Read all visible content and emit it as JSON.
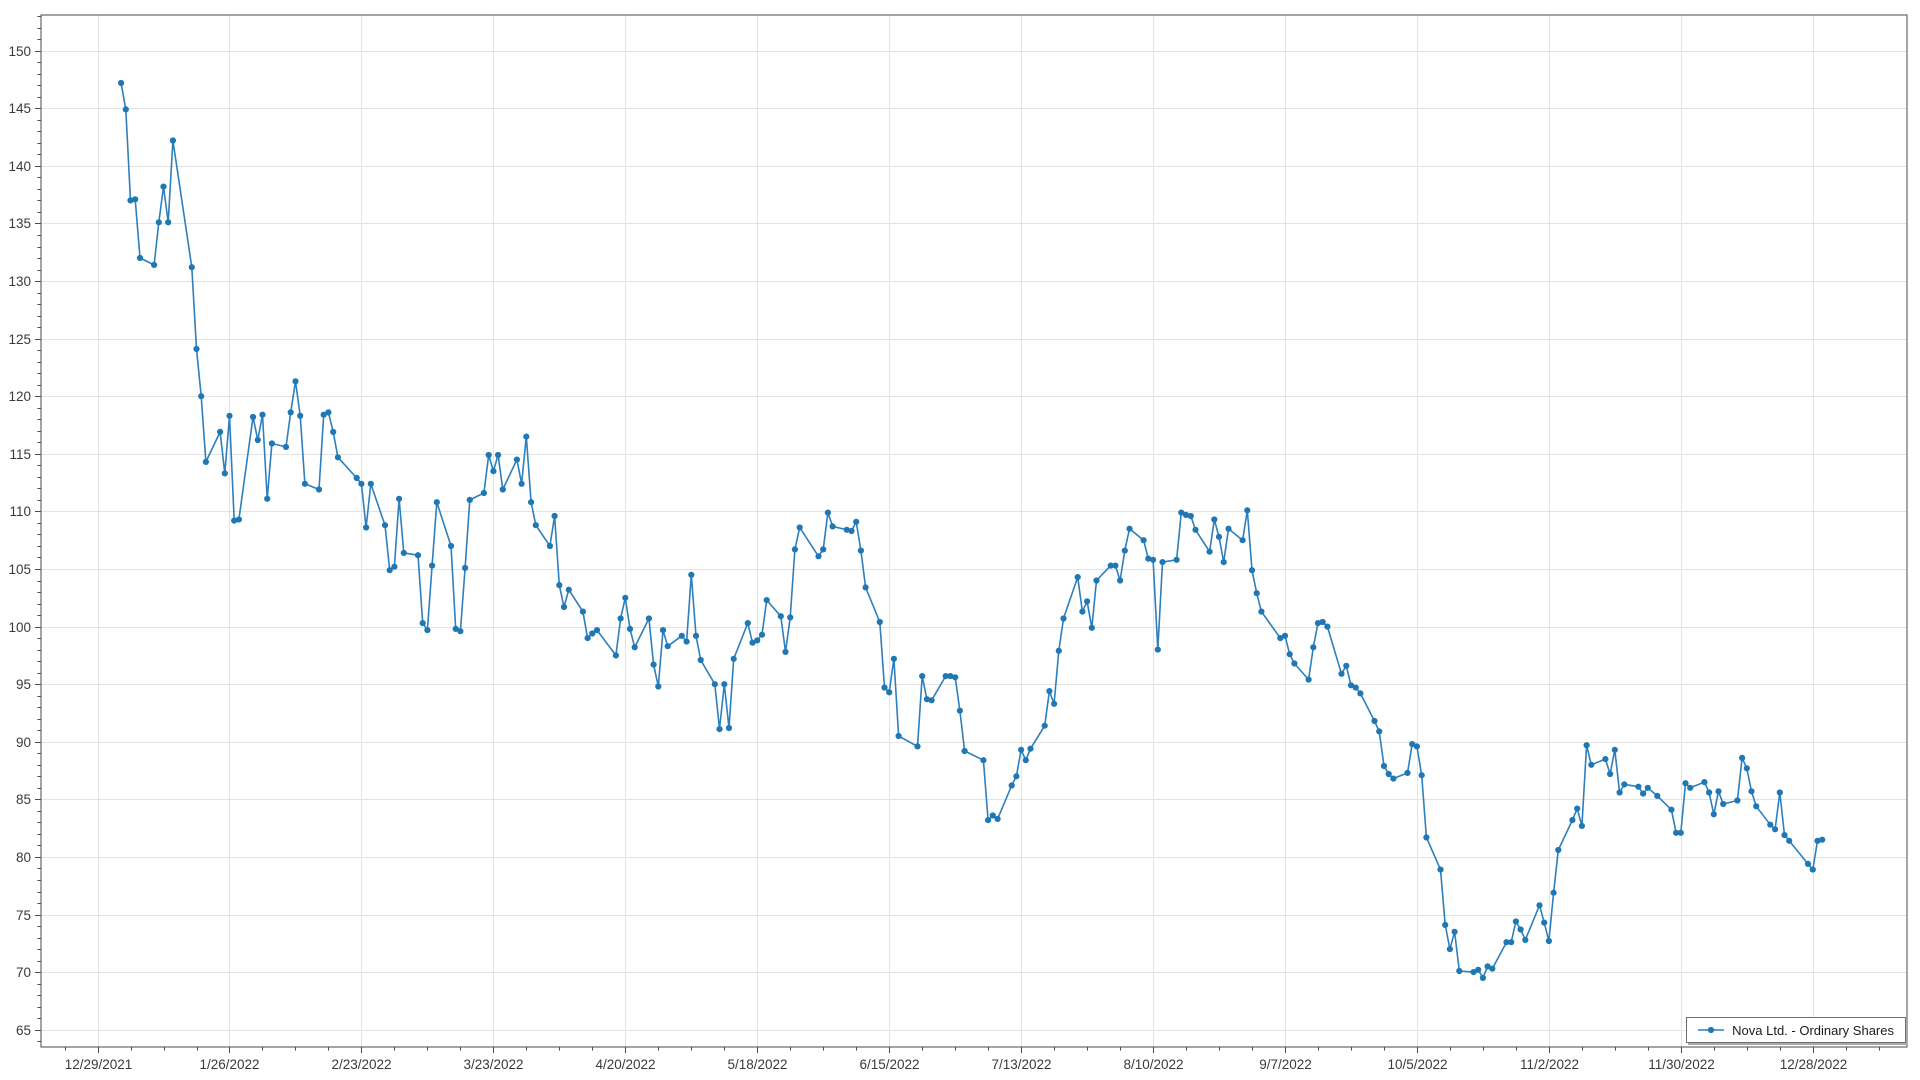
{
  "chart_data": {
    "type": "line",
    "title": "",
    "series_name": "Nova Ltd. - Ordinary Shares",
    "line_color": "#2d7fbd",
    "marker_color": "#1f77b4",
    "grid_color": "#e4e4e4",
    "axis_border_color": "#4a4a4a",
    "tick_color": "#4a4a4a",
    "label_color": "#3a3a3a",
    "grid": true,
    "anchor_date": "2021-12-29",
    "x_domain_days": [
      -12,
      384
    ],
    "y_domain": [
      63.5,
      153.1
    ],
    "x_axis": {
      "major_interval_days": 28,
      "minor_interval_days": 7,
      "ticks": [
        {
          "date": "2021-12-29",
          "label": "12/29/2021"
        },
        {
          "date": "2022-01-26",
          "label": "1/26/2022"
        },
        {
          "date": "2022-02-23",
          "label": "2/23/2022"
        },
        {
          "date": "2022-03-23",
          "label": "3/23/2022"
        },
        {
          "date": "2022-04-20",
          "label": "4/20/2022"
        },
        {
          "date": "2022-05-18",
          "label": "5/18/2022"
        },
        {
          "date": "2022-06-15",
          "label": "6/15/2022"
        },
        {
          "date": "2022-07-13",
          "label": "7/13/2022"
        },
        {
          "date": "2022-08-10",
          "label": "8/10/2022"
        },
        {
          "date": "2022-09-07",
          "label": "9/7/2022"
        },
        {
          "date": "2022-10-05",
          "label": "10/5/2022"
        },
        {
          "date": "2022-11-02",
          "label": "11/2/2022"
        },
        {
          "date": "2022-11-30",
          "label": "11/30/2022"
        },
        {
          "date": "2022-12-28",
          "label": "12/28/2022"
        }
      ]
    },
    "y_axis": {
      "tick_values": [
        65,
        70,
        75,
        80,
        85,
        90,
        95,
        100,
        105,
        110,
        115,
        120,
        125,
        130,
        135,
        140,
        145,
        150
      ],
      "major_step": 5,
      "minor_step": 1
    },
    "legend": {
      "label": "Nova Ltd. - Ordinary Shares",
      "position": "bottom-right"
    },
    "dates": [
      "2022-01-03",
      "2022-01-04",
      "2022-01-05",
      "2022-01-06",
      "2022-01-07",
      "2022-01-10",
      "2022-01-11",
      "2022-01-12",
      "2022-01-13",
      "2022-01-14",
      "2022-01-18",
      "2022-01-19",
      "2022-01-20",
      "2022-01-21",
      "2022-01-24",
      "2022-01-25",
      "2022-01-26",
      "2022-01-27",
      "2022-01-28",
      "2022-01-31",
      "2022-02-01",
      "2022-02-02",
      "2022-02-03",
      "2022-02-04",
      "2022-02-07",
      "2022-02-08",
      "2022-02-09",
      "2022-02-10",
      "2022-02-11",
      "2022-02-14",
      "2022-02-15",
      "2022-02-16",
      "2022-02-17",
      "2022-02-18",
      "2022-02-22",
      "2022-02-23",
      "2022-02-24",
      "2022-02-25",
      "2022-02-28",
      "2022-03-01",
      "2022-03-02",
      "2022-03-03",
      "2022-03-04",
      "2022-03-07",
      "2022-03-08",
      "2022-03-09",
      "2022-03-10",
      "2022-03-11",
      "2022-03-14",
      "2022-03-15",
      "2022-03-16",
      "2022-03-17",
      "2022-03-18",
      "2022-03-21",
      "2022-03-22",
      "2022-03-23",
      "2022-03-24",
      "2022-03-25",
      "2022-03-28",
      "2022-03-29",
      "2022-03-30",
      "2022-03-31",
      "2022-04-01",
      "2022-04-04",
      "2022-04-05",
      "2022-04-06",
      "2022-04-07",
      "2022-04-08",
      "2022-04-11",
      "2022-04-12",
      "2022-04-13",
      "2022-04-14",
      "2022-04-18",
      "2022-04-19",
      "2022-04-20",
      "2022-04-21",
      "2022-04-22",
      "2022-04-25",
      "2022-04-26",
      "2022-04-27",
      "2022-04-28",
      "2022-04-29",
      "2022-05-02",
      "2022-05-03",
      "2022-05-04",
      "2022-05-05",
      "2022-05-06",
      "2022-05-09",
      "2022-05-10",
      "2022-05-11",
      "2022-05-12",
      "2022-05-13",
      "2022-05-16",
      "2022-05-17",
      "2022-05-18",
      "2022-05-19",
      "2022-05-20",
      "2022-05-23",
      "2022-05-24",
      "2022-05-25",
      "2022-05-26",
      "2022-05-27",
      "2022-05-31",
      "2022-06-01",
      "2022-06-02",
      "2022-06-03",
      "2022-06-06",
      "2022-06-07",
      "2022-06-08",
      "2022-06-09",
      "2022-06-10",
      "2022-06-13",
      "2022-06-14",
      "2022-06-15",
      "2022-06-16",
      "2022-06-17",
      "2022-06-21",
      "2022-06-22",
      "2022-06-23",
      "2022-06-24",
      "2022-06-27",
      "2022-06-28",
      "2022-06-29",
      "2022-06-30",
      "2022-07-01",
      "2022-07-05",
      "2022-07-06",
      "2022-07-07",
      "2022-07-08",
      "2022-07-11",
      "2022-07-12",
      "2022-07-13",
      "2022-07-14",
      "2022-07-15",
      "2022-07-18",
      "2022-07-19",
      "2022-07-20",
      "2022-07-21",
      "2022-07-22",
      "2022-07-25",
      "2022-07-26",
      "2022-07-27",
      "2022-07-28",
      "2022-07-29",
      "2022-08-01",
      "2022-08-02",
      "2022-08-03",
      "2022-08-04",
      "2022-08-05",
      "2022-08-08",
      "2022-08-09",
      "2022-08-10",
      "2022-08-11",
      "2022-08-12",
      "2022-08-15",
      "2022-08-16",
      "2022-08-17",
      "2022-08-18",
      "2022-08-19",
      "2022-08-22",
      "2022-08-23",
      "2022-08-24",
      "2022-08-25",
      "2022-08-26",
      "2022-08-29",
      "2022-08-30",
      "2022-08-31",
      "2022-09-01",
      "2022-09-02",
      "2022-09-06",
      "2022-09-07",
      "2022-09-08",
      "2022-09-09",
      "2022-09-12",
      "2022-09-13",
      "2022-09-14",
      "2022-09-15",
      "2022-09-16",
      "2022-09-19",
      "2022-09-20",
      "2022-09-21",
      "2022-09-22",
      "2022-09-23",
      "2022-09-26",
      "2022-09-27",
      "2022-09-28",
      "2022-09-29",
      "2022-09-30",
      "2022-10-03",
      "2022-10-04",
      "2022-10-05",
      "2022-10-06",
      "2022-10-07",
      "2022-10-10",
      "2022-10-11",
      "2022-10-12",
      "2022-10-13",
      "2022-10-14",
      "2022-10-17",
      "2022-10-18",
      "2022-10-19",
      "2022-10-20",
      "2022-10-21",
      "2022-10-24",
      "2022-10-25",
      "2022-10-26",
      "2022-10-27",
      "2022-10-28",
      "2022-10-31",
      "2022-11-01",
      "2022-11-02",
      "2022-11-03",
      "2022-11-04",
      "2022-11-07",
      "2022-11-08",
      "2022-11-09",
      "2022-11-10",
      "2022-11-11",
      "2022-11-14",
      "2022-11-15",
      "2022-11-16",
      "2022-11-17",
      "2022-11-18",
      "2022-11-21",
      "2022-11-22",
      "2022-11-23",
      "2022-11-25",
      "2022-11-28",
      "2022-11-29",
      "2022-11-30",
      "2022-12-01",
      "2022-12-02",
      "2022-12-05",
      "2022-12-06",
      "2022-12-07",
      "2022-12-08",
      "2022-12-09",
      "2022-12-12",
      "2022-12-13",
      "2022-12-14",
      "2022-12-15",
      "2022-12-16",
      "2022-12-19",
      "2022-12-20",
      "2022-12-21",
      "2022-12-22",
      "2022-12-23",
      "2022-12-27",
      "2022-12-28",
      "2022-12-29",
      "2022-12-30"
    ],
    "values": [
      147.2,
      144.9,
      137.0,
      137.1,
      132.0,
      131.4,
      135.1,
      138.2,
      135.1,
      142.2,
      131.2,
      124.1,
      120.0,
      114.3,
      116.9,
      113.3,
      118.3,
      109.2,
      109.3,
      118.2,
      116.2,
      118.4,
      111.1,
      115.9,
      115.6,
      118.6,
      121.3,
      118.3,
      112.4,
      111.9,
      118.4,
      118.6,
      116.9,
      114.7,
      112.9,
      112.4,
      108.6,
      112.4,
      108.8,
      104.9,
      105.2,
      111.1,
      106.4,
      106.2,
      100.3,
      99.7,
      105.3,
      110.8,
      107.0,
      99.8,
      99.6,
      105.1,
      111.0,
      111.6,
      114.9,
      113.5,
      114.9,
      111.9,
      114.5,
      112.4,
      116.5,
      110.8,
      108.8,
      107.0,
      109.6,
      103.6,
      101.7,
      103.2,
      101.3,
      99.0,
      99.4,
      99.7,
      97.5,
      100.7,
      102.5,
      99.8,
      98.2,
      100.7,
      96.7,
      94.8,
      99.7,
      98.3,
      99.2,
      98.7,
      104.5,
      99.2,
      97.1,
      95.0,
      91.1,
      95.0,
      91.2,
      97.2,
      100.3,
      98.6,
      98.8,
      99.3,
      102.3,
      100.9,
      97.8,
      100.8,
      106.7,
      108.6,
      106.1,
      106.7,
      109.9,
      108.7,
      108.4,
      108.3,
      109.1,
      106.6,
      103.4,
      100.4,
      94.7,
      94.3,
      97.2,
      90.5,
      89.6,
      95.7,
      93.7,
      93.6,
      95.7,
      95.7,
      95.6,
      92.7,
      89.2,
      88.4,
      83.2,
      83.6,
      83.3,
      86.2,
      87.0,
      89.3,
      88.4,
      89.4,
      91.4,
      94.4,
      93.3,
      97.9,
      100.7,
      104.3,
      101.3,
      102.2,
      99.9,
      104.0,
      105.3,
      105.3,
      104.0,
      106.6,
      108.5,
      107.5,
      105.9,
      105.8,
      98.0,
      105.6,
      105.8,
      109.9,
      109.7,
      109.6,
      108.4,
      106.5,
      109.3,
      107.8,
      105.6,
      108.5,
      107.5,
      110.1,
      104.9,
      102.9,
      101.3,
      99.0,
      99.2,
      97.6,
      96.8,
      95.4,
      98.2,
      100.3,
      100.4,
      100.0,
      95.9,
      96.6,
      94.9,
      94.7,
      94.2,
      91.8,
      90.9,
      87.9,
      87.2,
      86.8,
      87.3,
      89.8,
      89.6,
      87.1,
      81.7,
      78.9,
      74.1,
      72.0,
      73.5,
      70.1,
      70.0,
      70.2,
      69.5,
      70.5,
      70.3,
      72.6,
      72.6,
      74.4,
      73.7,
      72.8,
      75.8,
      74.3,
      72.7,
      76.9,
      80.6,
      83.2,
      84.2,
      82.7,
      89.7,
      88.0,
      88.5,
      87.2,
      89.3,
      85.6,
      86.3,
      86.1,
      85.5,
      86.0,
      85.3,
      84.1,
      82.1,
      82.1,
      86.4,
      86.0,
      86.5,
      85.6,
      83.7,
      85.7,
      84.6,
      84.9,
      88.6,
      87.7,
      85.7,
      84.4,
      82.8,
      82.4,
      85.6,
      81.9,
      81.4,
      79.4,
      78.9,
      81.4,
      81.5
    ]
  }
}
